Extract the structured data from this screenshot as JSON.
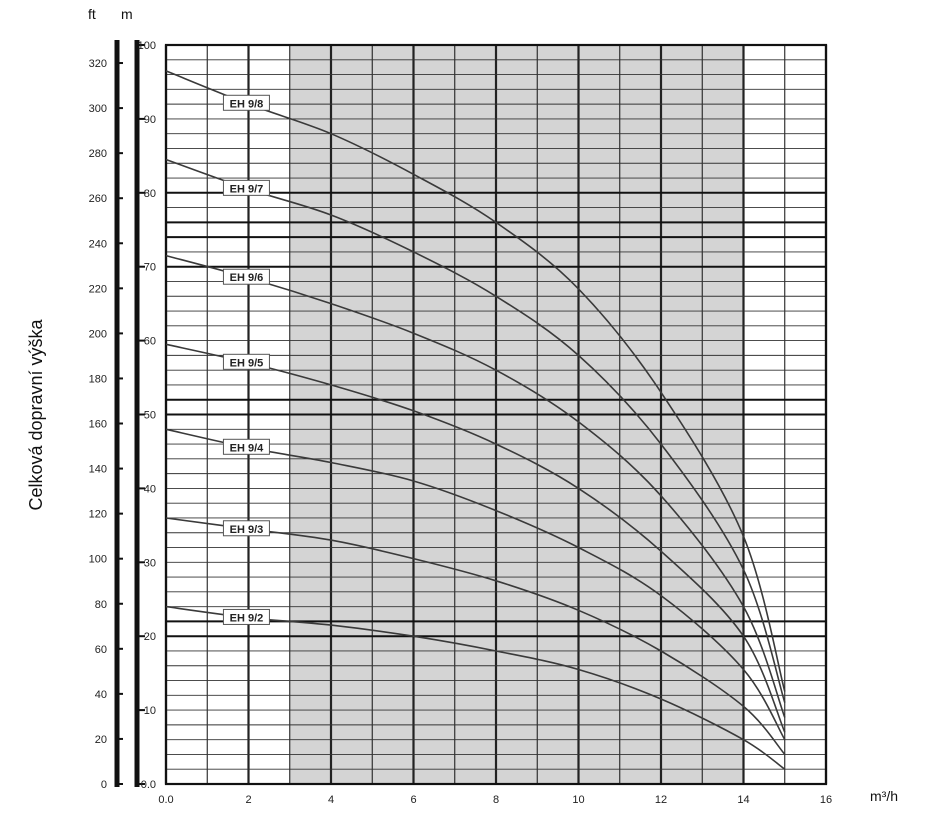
{
  "chart_data": {
    "type": "line",
    "title": "",
    "ylabel": "Celková dopravní výška",
    "xlabel": "m³/h",
    "ylabel_ft_unit": "ft",
    "ylabel_m_unit": "m",
    "xlim": [
      0,
      16
    ],
    "ylim_m": [
      0,
      100
    ],
    "ylim_ft": [
      0,
      328
    ],
    "x_ticks": [
      "0.0",
      "2",
      "4",
      "6",
      "8",
      "10",
      "12",
      "14",
      "16"
    ],
    "y_m_ticks": [
      "0.0",
      "10",
      "20",
      "30",
      "40",
      "50",
      "60",
      "70",
      "80",
      "90",
      "100"
    ],
    "y_ft_ticks": [
      "0",
      "20",
      "40",
      "60",
      "80",
      "100",
      "120",
      "140",
      "160",
      "180",
      "200",
      "220",
      "240",
      "260",
      "280",
      "300",
      "320"
    ],
    "shaded_region_x": [
      3,
      14
    ],
    "grid": true,
    "series": [
      {
        "name": "EH 9/8",
        "x": [
          0,
          2,
          4,
          6,
          8,
          10,
          12,
          14,
          15
        ],
        "y": [
          96.5,
          92,
          88,
          82.5,
          76,
          67,
          53,
          33.5,
          12.5
        ]
      },
      {
        "name": "EH 9/7",
        "x": [
          0,
          2,
          4,
          6,
          8,
          10,
          12,
          14,
          15
        ],
        "y": [
          84.5,
          80.5,
          77,
          72,
          66,
          58,
          46,
          29,
          11
        ]
      },
      {
        "name": "EH 9/6",
        "x": [
          0,
          2,
          4,
          6,
          8,
          10,
          12,
          14,
          15
        ],
        "y": [
          71.5,
          68.5,
          65,
          61,
          56,
          49,
          39,
          24,
          9
        ]
      },
      {
        "name": "EH 9/5",
        "x": [
          0,
          2,
          4,
          6,
          8,
          10,
          12,
          14,
          15
        ],
        "y": [
          59.5,
          57,
          54,
          50.5,
          46,
          40,
          31.5,
          20,
          7
        ]
      },
      {
        "name": "EH 9/4",
        "x": [
          0,
          2,
          4,
          6,
          8,
          10,
          12,
          14,
          15
        ],
        "y": [
          48,
          45.5,
          43.5,
          41,
          37,
          32,
          25.5,
          15.5,
          6
        ]
      },
      {
        "name": "EH 9/3",
        "x": [
          0,
          2,
          4,
          6,
          8,
          10,
          12,
          14,
          15
        ],
        "y": [
          36,
          34.5,
          33,
          30.5,
          27.5,
          23.5,
          18,
          10.5,
          4
        ]
      },
      {
        "name": "EH 9/2",
        "x": [
          0,
          2,
          4,
          6,
          8,
          10,
          12,
          14,
          15
        ],
        "y": [
          24,
          22.5,
          21.5,
          20,
          18,
          15.5,
          11.5,
          6,
          2
        ]
      }
    ],
    "label_pos_x": 1.95
  }
}
